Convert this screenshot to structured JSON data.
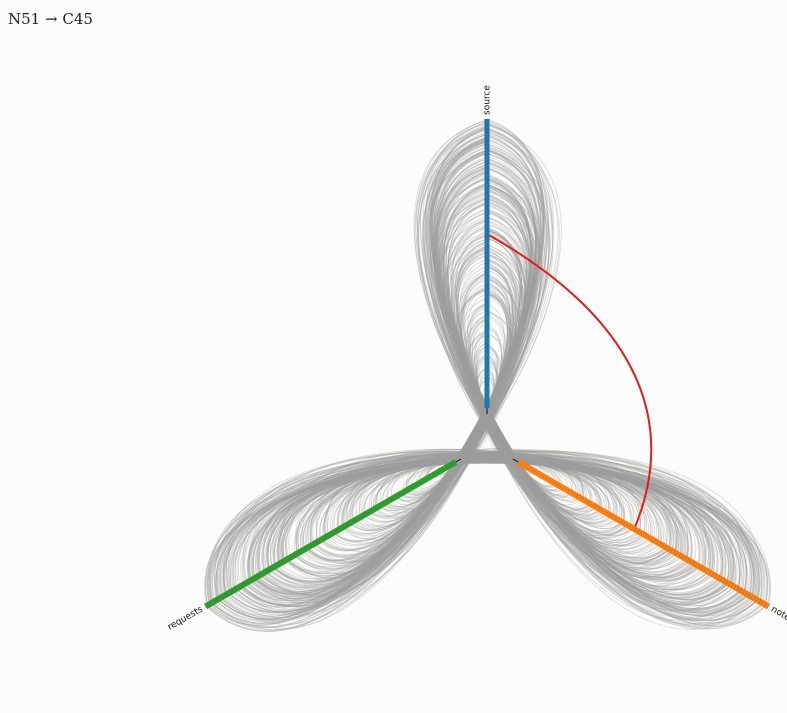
{
  "info": {
    "from": "N51",
    "arrow": "→",
    "to": "C45"
  },
  "colors": {
    "background": "#fcfcfa",
    "link": "#9e9e9e",
    "highlight": "#e41a1c",
    "axis_source": "#1f77b4",
    "axis_target": "#ff7f0e",
    "axis_other": "#2ca02c"
  },
  "axes": [
    {
      "name": "source",
      "label": "source",
      "color": "#1f77b4",
      "angle_deg": -90
    },
    {
      "name": "target",
      "label": "notes",
      "color": "#ff7f0e",
      "angle_deg": 30
    },
    {
      "name": "other",
      "label": "requests",
      "color": "#2ca02c",
      "angle_deg": 150
    }
  ],
  "diagram": {
    "type": "hive-plot",
    "link_count_estimate": 700,
    "highlighted_link": {
      "from": "N51",
      "to": "C45",
      "from_axis": "source",
      "to_axis": "target"
    }
  }
}
